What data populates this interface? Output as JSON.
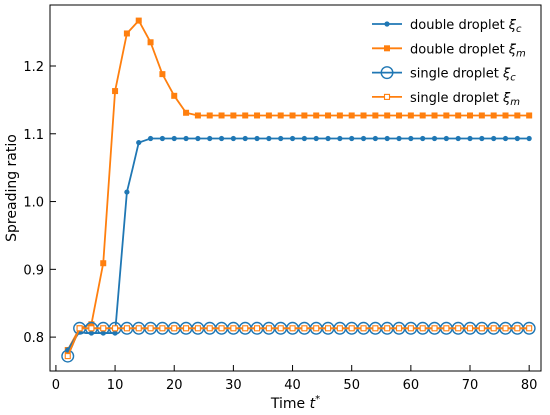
{
  "chart_data": {
    "type": "line",
    "title": "",
    "xlabel": "Time t*",
    "ylabel": "Spreading ratio",
    "xlim": [
      -1,
      82
    ],
    "ylim": [
      0.75,
      1.29
    ],
    "xticks": [
      0,
      10,
      20,
      30,
      40,
      50,
      60,
      70,
      80
    ],
    "yticks": [
      0.8,
      0.9,
      1.0,
      1.1,
      1.2
    ],
    "xtick_labels": [
      "0",
      "10",
      "20",
      "30",
      "40",
      "50",
      "60",
      "70",
      "80"
    ],
    "ytick_labels": [
      "0.8",
      "0.9",
      "1.0",
      "1.1",
      "1.2"
    ],
    "grid": false,
    "legend_position": "top-right",
    "series": [
      {
        "name": "double droplet ξc",
        "color": "#1f77b4",
        "marker": "filled-circle",
        "x": [
          2,
          3,
          4,
          5,
          6,
          7,
          8,
          9,
          10,
          11,
          12,
          13,
          14,
          15,
          16,
          17,
          18,
          19,
          20,
          21,
          22,
          23,
          24,
          25,
          26,
          27,
          28,
          29,
          30,
          31,
          32,
          33,
          34,
          35,
          36,
          37,
          38,
          39,
          40,
          41,
          42,
          43,
          44,
          45,
          46,
          47,
          48,
          49,
          50,
          51,
          52,
          53,
          54,
          55,
          56,
          57,
          58,
          59,
          60,
          61,
          62,
          63,
          64,
          65,
          66,
          67,
          68,
          69,
          70,
          71,
          72,
          73,
          74,
          75,
          76,
          77,
          78,
          79,
          80
        ],
        "y": [
          0.781,
          0.795,
          0.808,
          0.806,
          0.806,
          0.806,
          0.806,
          0.806,
          0.806,
          0.91,
          1.014,
          1.05,
          1.087,
          1.09,
          1.093,
          1.093,
          1.093,
          1.093,
          1.093,
          1.093,
          1.093,
          1.093,
          1.093,
          1.093,
          1.093,
          1.093,
          1.093,
          1.093,
          1.093,
          1.093,
          1.093,
          1.093,
          1.093,
          1.093,
          1.093,
          1.093,
          1.093,
          1.093,
          1.093,
          1.093,
          1.093,
          1.093,
          1.093,
          1.093,
          1.093,
          1.093,
          1.093,
          1.093,
          1.093,
          1.093,
          1.093,
          1.093,
          1.093,
          1.093,
          1.093,
          1.093,
          1.093,
          1.093,
          1.093,
          1.093,
          1.093,
          1.093,
          1.093,
          1.093,
          1.093,
          1.093,
          1.093,
          1.093,
          1.093,
          1.093,
          1.093,
          1.093,
          1.093,
          1.093,
          1.093,
          1.093,
          1.093,
          1.093,
          1.093
        ],
        "marker_x": [
          2,
          4,
          6,
          8,
          10,
          12,
          14,
          16,
          18,
          20,
          22,
          24,
          26,
          28,
          30,
          32,
          34,
          36,
          38,
          40,
          42,
          44,
          46,
          48,
          50,
          52,
          54,
          56,
          58,
          60,
          62,
          64,
          66,
          68,
          70,
          72,
          74,
          76,
          78,
          80
        ]
      },
      {
        "name": "double droplet ξm",
        "color": "#ff7f0e",
        "marker": "filled-square",
        "x": [
          2,
          4,
          6,
          8,
          10,
          12,
          14,
          16,
          18,
          20,
          22,
          24,
          26,
          28,
          30,
          32,
          34,
          36,
          38,
          40,
          42,
          44,
          46,
          48,
          50,
          52,
          54,
          56,
          58,
          60,
          62,
          64,
          66,
          68,
          70,
          72,
          74,
          76,
          78,
          80
        ],
        "y": [
          0.781,
          0.813,
          0.819,
          0.909,
          1.163,
          1.248,
          1.267,
          1.235,
          1.188,
          1.156,
          1.131,
          1.127,
          1.127,
          1.127,
          1.127,
          1.127,
          1.127,
          1.127,
          1.127,
          1.127,
          1.127,
          1.127,
          1.127,
          1.127,
          1.127,
          1.127,
          1.127,
          1.127,
          1.127,
          1.127,
          1.127,
          1.127,
          1.127,
          1.127,
          1.127,
          1.127,
          1.127,
          1.127,
          1.127,
          1.127
        ]
      },
      {
        "name": "single droplet ξc",
        "color": "#1f77b4",
        "marker": "open-circle",
        "x": [
          2,
          4,
          6,
          8,
          10,
          12,
          14,
          16,
          18,
          20,
          22,
          24,
          26,
          28,
          30,
          32,
          34,
          36,
          38,
          40,
          42,
          44,
          46,
          48,
          50,
          52,
          54,
          56,
          58,
          60,
          62,
          64,
          66,
          68,
          70,
          72,
          74,
          76,
          78,
          80
        ],
        "y": [
          0.772,
          0.813,
          0.813,
          0.813,
          0.813,
          0.813,
          0.813,
          0.813,
          0.813,
          0.813,
          0.813,
          0.813,
          0.813,
          0.813,
          0.813,
          0.813,
          0.813,
          0.813,
          0.813,
          0.813,
          0.813,
          0.813,
          0.813,
          0.813,
          0.813,
          0.813,
          0.813,
          0.813,
          0.813,
          0.813,
          0.813,
          0.813,
          0.813,
          0.813,
          0.813,
          0.813,
          0.813,
          0.813,
          0.813,
          0.813
        ]
      },
      {
        "name": "single droplet ξm",
        "color": "#ff7f0e",
        "marker": "open-square",
        "x": [
          2,
          4,
          6,
          8,
          10,
          12,
          14,
          16,
          18,
          20,
          22,
          24,
          26,
          28,
          30,
          32,
          34,
          36,
          38,
          40,
          42,
          44,
          46,
          48,
          50,
          52,
          54,
          56,
          58,
          60,
          62,
          64,
          66,
          68,
          70,
          72,
          74,
          76,
          78,
          80
        ],
        "y": [
          0.772,
          0.813,
          0.813,
          0.813,
          0.813,
          0.813,
          0.813,
          0.813,
          0.813,
          0.813,
          0.813,
          0.813,
          0.813,
          0.813,
          0.813,
          0.813,
          0.813,
          0.813,
          0.813,
          0.813,
          0.813,
          0.813,
          0.813,
          0.813,
          0.813,
          0.813,
          0.813,
          0.813,
          0.813,
          0.813,
          0.813,
          0.813,
          0.813,
          0.813,
          0.813,
          0.813,
          0.813,
          0.813,
          0.813,
          0.813
        ]
      }
    ]
  }
}
